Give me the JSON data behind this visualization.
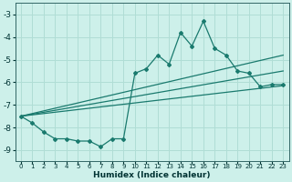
{
  "xlabel": "Humidex (Indice chaleur)",
  "bg_color": "#cdf0ea",
  "grid_color": "#b0ddd5",
  "line_color": "#1a7a6e",
  "xlim": [
    -0.5,
    23.5
  ],
  "ylim": [
    -9.5,
    -2.5
  ],
  "xticks": [
    0,
    1,
    2,
    3,
    4,
    5,
    6,
    7,
    8,
    9,
    10,
    11,
    12,
    13,
    14,
    15,
    16,
    17,
    18,
    19,
    20,
    21,
    22,
    23
  ],
  "yticks": [
    -9,
    -8,
    -7,
    -6,
    -5,
    -4,
    -3
  ],
  "main_line_x": [
    0,
    1,
    2,
    3,
    4,
    5,
    6,
    7,
    8,
    9,
    10,
    11,
    12,
    13,
    14,
    15,
    16,
    17,
    18,
    19,
    20,
    21,
    22,
    23
  ],
  "main_line_y": [
    -7.5,
    -7.8,
    -8.2,
    -8.5,
    -8.5,
    -8.6,
    -8.6,
    -8.85,
    -8.5,
    -8.5,
    -5.6,
    -5.4,
    -4.8,
    -5.2,
    -3.8,
    -4.4,
    -3.3,
    -4.5,
    -4.8,
    -5.5,
    -5.6,
    -6.2,
    -6.1,
    -6.1
  ],
  "upper_line_x": [
    0,
    23
  ],
  "upper_line_y": [
    -7.5,
    -4.8
  ],
  "mid_line_x": [
    0,
    23
  ],
  "mid_line_y": [
    -7.5,
    -5.5
  ],
  "lower_line_x": [
    0,
    23
  ],
  "lower_line_y": [
    -7.5,
    -6.15
  ]
}
